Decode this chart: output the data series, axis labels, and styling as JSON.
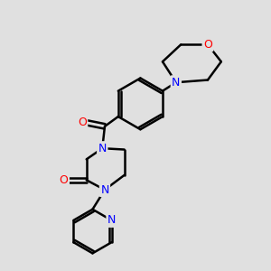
{
  "bg_color": "#e0e0e0",
  "bond_color": "#000000",
  "N_color": "#0000ff",
  "O_color": "#ff0000",
  "line_width": 1.8,
  "figsize": [
    3.0,
    3.0
  ],
  "dpi": 100,
  "xlim": [
    0.0,
    10.0
  ],
  "ylim": [
    0.0,
    11.0
  ]
}
